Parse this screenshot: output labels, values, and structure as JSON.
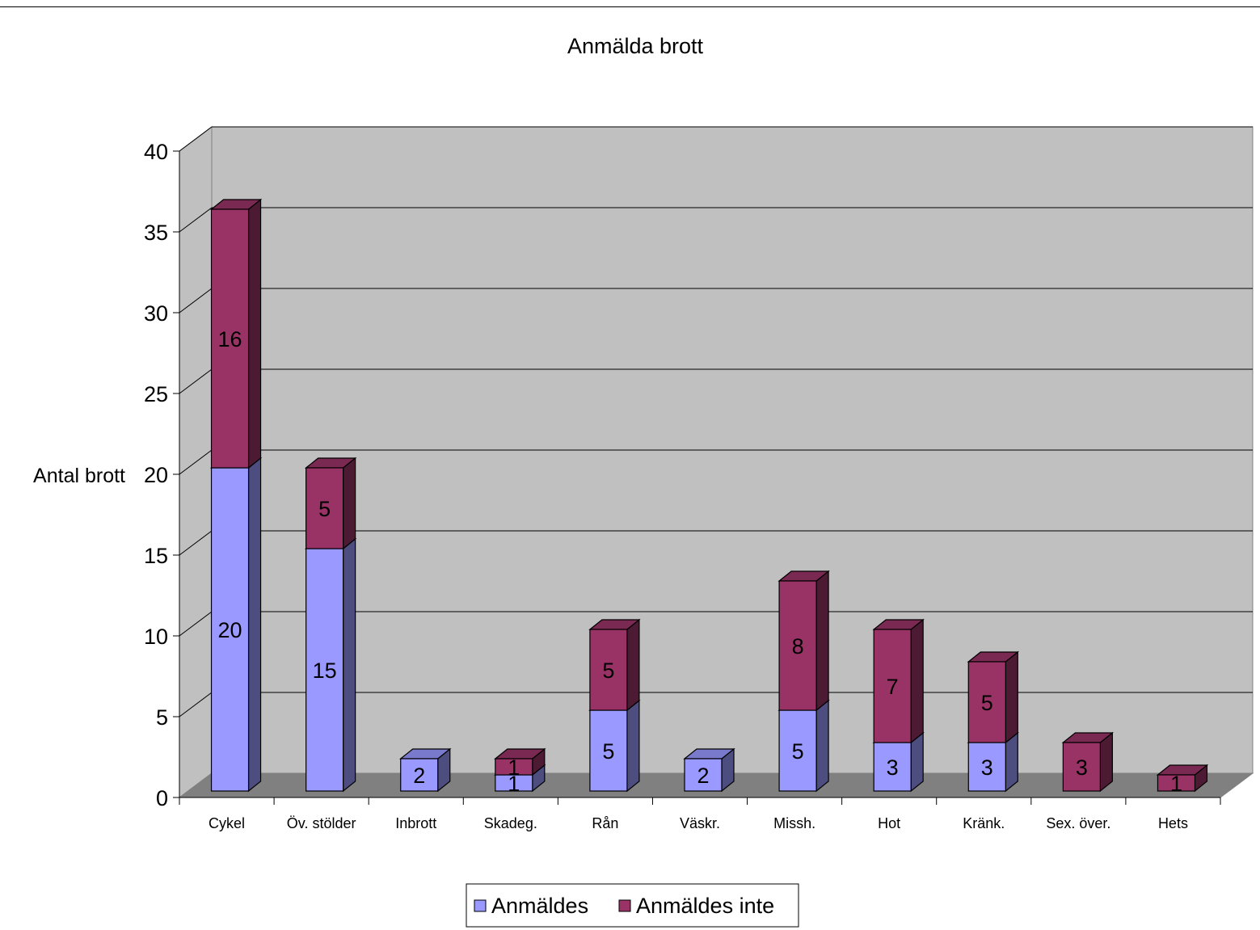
{
  "chart_data": {
    "type": "bar",
    "stacked": true,
    "three_d": true,
    "title": "Anmälda brott",
    "ylabel": "Antal brott",
    "xlabel": "",
    "ylim": [
      0,
      40
    ],
    "yticks": [
      0,
      5,
      10,
      15,
      20,
      25,
      30,
      35,
      40
    ],
    "grid": true,
    "legend_position": "bottom",
    "categories": [
      "Cykel",
      "Öv. stölder",
      "Inbrott",
      "Skadeg.",
      "Rån",
      "Väskr.",
      "Missh.",
      "Hot",
      "Kränk.",
      "Sex. över.",
      "Hets"
    ],
    "series": [
      {
        "name": "Anmäldes",
        "values": [
          20,
          15,
          2,
          1,
          5,
          2,
          5,
          3,
          3,
          0,
          0
        ],
        "color": "#9999ff",
        "side_color": "#4d4d80",
        "top_color": "#7a7acc"
      },
      {
        "name": "Anmäldes inte",
        "values": [
          16,
          5,
          0,
          1,
          5,
          0,
          8,
          7,
          5,
          3,
          1
        ],
        "color": "#993366",
        "side_color": "#4d1a33",
        "top_color": "#7a2952"
      }
    ],
    "colors": {
      "wall": "#c0c0c0",
      "floor": "#808080",
      "grid": "#000000"
    }
  }
}
